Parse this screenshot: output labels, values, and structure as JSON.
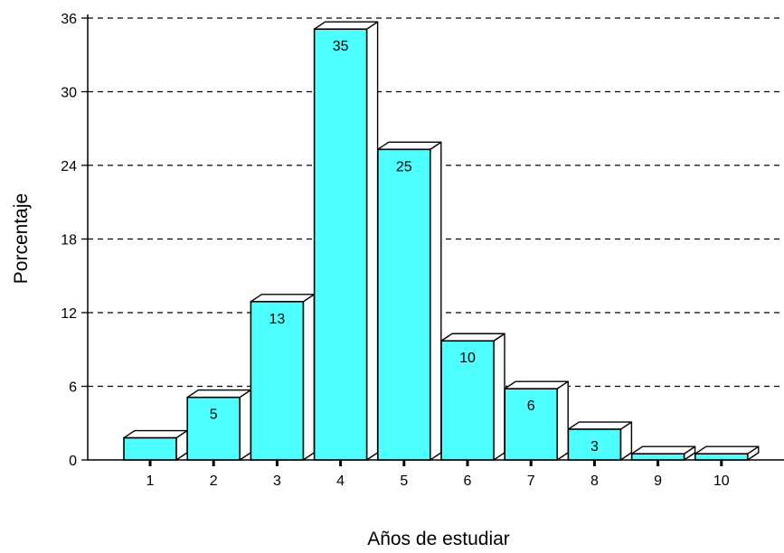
{
  "chart_data": {
    "type": "bar",
    "style": "3d",
    "categories": [
      "1",
      "2",
      "3",
      "4",
      "5",
      "6",
      "7",
      "8",
      "9",
      "10"
    ],
    "values": [
      1.8,
      5.1,
      12.9,
      35.1,
      25.3,
      9.7,
      5.8,
      2.5,
      0.5,
      0.5
    ],
    "data_labels": [
      "",
      "5",
      "13",
      "35",
      "25",
      "10",
      "6",
      "3",
      "",
      ""
    ],
    "title": "",
    "xlabel": "Años de estudiar",
    "ylabel": "Porcentaje",
    "ylim": [
      0,
      36
    ],
    "yticks": [
      "0",
      "6",
      "12",
      "18",
      "24",
      "30",
      "36"
    ],
    "grid": true,
    "grid_style": "dashed",
    "legend": "none",
    "colors": {
      "bar_front": "#4dffff",
      "bar_top": "#ffffff",
      "bar_side": "#ffffff",
      "outline": "#000000",
      "gridline": "#000000"
    }
  }
}
